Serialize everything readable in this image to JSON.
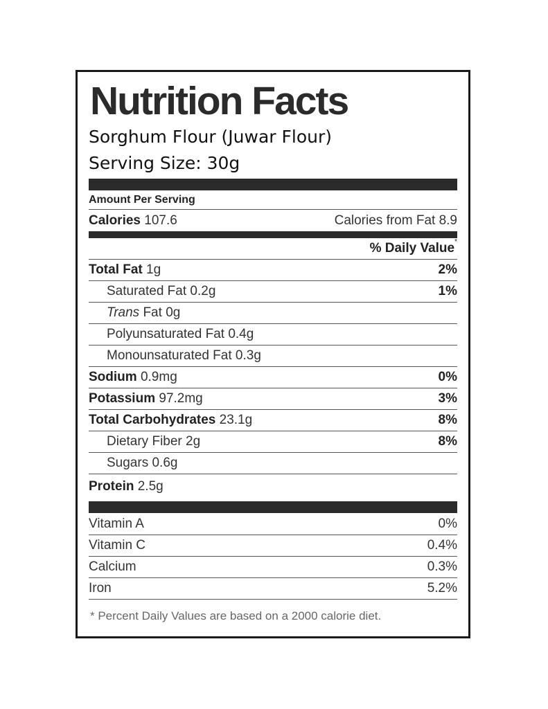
{
  "label": {
    "title": "Nutrition Facts",
    "product": "Sorghum Flour (Juwar Flour)",
    "serving_size": "Serving Size: 30g",
    "amount_per_serving": "Amount Per Serving",
    "calories_label": "Calories",
    "calories_value": "107.6",
    "calories_from_fat": "Calories from Fat 8.9",
    "daily_value_header": "% Daily Value",
    "daily_value_mark": "*",
    "nutrients": [
      {
        "name": "Total Fat",
        "amount": "1g",
        "pct": "2%"
      },
      {
        "name": "Saturated Fat",
        "amount": "0.2g",
        "pct": "1%"
      },
      {
        "name": "Trans",
        "name_rest": "Fat",
        "amount": "0g",
        "pct": ""
      },
      {
        "name": "Polyunsaturated Fat",
        "amount": "0.4g",
        "pct": ""
      },
      {
        "name": "Monounsaturated Fat",
        "amount": "0.3g",
        "pct": ""
      },
      {
        "name": "Sodium",
        "amount": "0.9mg",
        "pct": "0%"
      },
      {
        "name": "Potassium",
        "amount": "97.2mg",
        "pct": "3%"
      },
      {
        "name": "Total Carbohydrates",
        "amount": "23.1g",
        "pct": "8%"
      },
      {
        "name": "Dietary Fiber",
        "amount": "2g",
        "pct": "8%"
      },
      {
        "name": "Sugars",
        "amount": "0.6g",
        "pct": ""
      },
      {
        "name": "Protein",
        "amount": "2.5g",
        "pct": ""
      }
    ],
    "vitamins": [
      {
        "name": "Vitamin A",
        "pct": "0%"
      },
      {
        "name": "Vitamin C",
        "pct": "0.4%"
      },
      {
        "name": "Calcium",
        "pct": "0.3%"
      },
      {
        "name": "Iron",
        "pct": "5.2%"
      }
    ],
    "footnote": "* Percent Daily Values are based on a 2000 calorie diet."
  }
}
